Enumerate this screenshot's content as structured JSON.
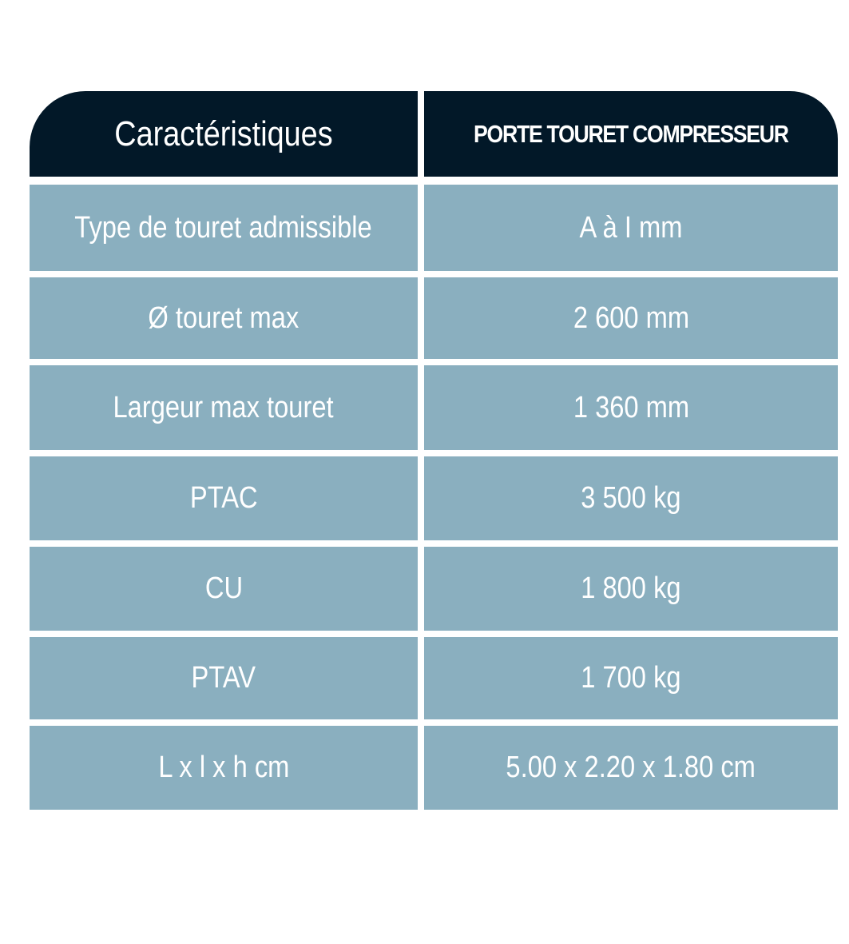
{
  "header": {
    "col1": "Caractéristiques",
    "col2": "PORTE TOURET COMPRESSEUR"
  },
  "rows": [
    {
      "label": "Type de touret admissible",
      "value": "A à I mm"
    },
    {
      "label": "Ø touret max",
      "value": "2 600 mm"
    },
    {
      "label": "Largeur max touret",
      "value": "1 360 mm"
    },
    {
      "label": "PTAC",
      "value": "3 500 kg"
    },
    {
      "label": "CU",
      "value": "1 800 kg"
    },
    {
      "label": "PTAV",
      "value": "1 700 kg"
    },
    {
      "label": "L x l x h cm",
      "value": "5.00 x 2.20 x 1.80 cm"
    }
  ],
  "colors": {
    "header_bg": "#021828",
    "cell_bg": "#8aafbf",
    "text": "#ffffff"
  }
}
